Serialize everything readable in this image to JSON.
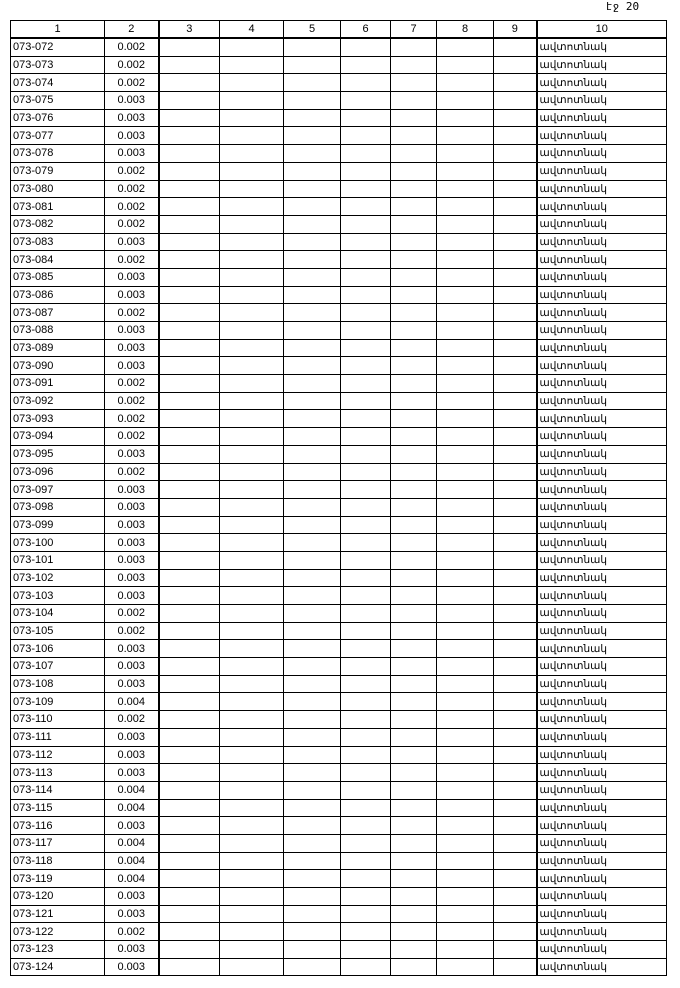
{
  "page_label": "էջ 20",
  "columns": [
    "1",
    "2",
    "3",
    "4",
    "5",
    "6",
    "7",
    "8",
    "9",
    "10"
  ],
  "rows": [
    [
      "073-072",
      "0.002",
      "ավտոտնակ"
    ],
    [
      "073-073",
      "0.002",
      "ավտոտնակ"
    ],
    [
      "073-074",
      "0.002",
      "ավտոտնակ"
    ],
    [
      "073-075",
      "0.003",
      "ավտոտնակ"
    ],
    [
      "073-076",
      "0.003",
      "ավտոտնակ"
    ],
    [
      "073-077",
      "0.003",
      "ավտոտնակ"
    ],
    [
      "073-078",
      "0.003",
      "ավտոտնակ"
    ],
    [
      "073-079",
      "0.002",
      "ավտոտնակ"
    ],
    [
      "073-080",
      "0.002",
      "ավտոտնակ"
    ],
    [
      "073-081",
      "0.002",
      "ավտոտնակ"
    ],
    [
      "073-082",
      "0.002",
      "ավտոտնակ"
    ],
    [
      "073-083",
      "0.003",
      "ավտոտնակ"
    ],
    [
      "073-084",
      "0.002",
      "ավտոտնակ"
    ],
    [
      "073-085",
      "0.003",
      "ավտոտնակ"
    ],
    [
      "073-086",
      "0.003",
      "ավտոտնակ"
    ],
    [
      "073-087",
      "0.002",
      "ավտոտնակ"
    ],
    [
      "073-088",
      "0.003",
      "ավտոտնակ"
    ],
    [
      "073-089",
      "0.003",
      "ավտոտնակ"
    ],
    [
      "073-090",
      "0.003",
      "ավտոտնակ"
    ],
    [
      "073-091",
      "0.002",
      "ավտոտնակ"
    ],
    [
      "073-092",
      "0.002",
      "ավտոտնակ"
    ],
    [
      "073-093",
      "0.002",
      "ավտոտնակ"
    ],
    [
      "073-094",
      "0.002",
      "ավտոտնակ"
    ],
    [
      "073-095",
      "0.003",
      "ավտոտնակ"
    ],
    [
      "073-096",
      "0.002",
      "ավտոտնակ"
    ],
    [
      "073-097",
      "0.003",
      "ավտոտնակ"
    ],
    [
      "073-098",
      "0.003",
      "ավտոտնակ"
    ],
    [
      "073-099",
      "0.003",
      "ավտոտնակ"
    ],
    [
      "073-100",
      "0.003",
      "ավտոտնակ"
    ],
    [
      "073-101",
      "0.003",
      "ավտոտնակ"
    ],
    [
      "073-102",
      "0.003",
      "ավտոտնակ"
    ],
    [
      "073-103",
      "0.003",
      "ավտոտնակ"
    ],
    [
      "073-104",
      "0.002",
      "ավտոտնակ"
    ],
    [
      "073-105",
      "0.002",
      "ավտոտնակ"
    ],
    [
      "073-106",
      "0.003",
      "ավտոտնակ"
    ],
    [
      "073-107",
      "0.003",
      "ավտոտնակ"
    ],
    [
      "073-108",
      "0.003",
      "ավտոտնակ"
    ],
    [
      "073-109",
      "0.004",
      "ավտոտնակ"
    ],
    [
      "073-110",
      "0.002",
      "ավտոտնակ"
    ],
    [
      "073-111",
      "0.003",
      "ավտոտնակ"
    ],
    [
      "073-112",
      "0.003",
      "ավտոտնակ"
    ],
    [
      "073-113",
      "0.003",
      "ավտոտնակ"
    ],
    [
      "073-114",
      "0.004",
      "ավտոտնակ"
    ],
    [
      "073-115",
      "0.004",
      "ավտոտնակ"
    ],
    [
      "073-116",
      "0.003",
      "ավտոտնակ"
    ],
    [
      "073-117",
      "0.004",
      "ավտոտնակ"
    ],
    [
      "073-118",
      "0.004",
      "ավտոտնակ"
    ],
    [
      "073-119",
      "0.004",
      "ավտոտնակ"
    ],
    [
      "073-120",
      "0.003",
      "ավտոտնակ"
    ],
    [
      "073-121",
      "0.003",
      "ավտոտնակ"
    ],
    [
      "073-122",
      "0.002",
      "ավտոտնակ"
    ],
    [
      "073-123",
      "0.003",
      "ավտոտնակ"
    ],
    [
      "073-124",
      "0.003",
      "ավտոտնակ"
    ]
  ]
}
